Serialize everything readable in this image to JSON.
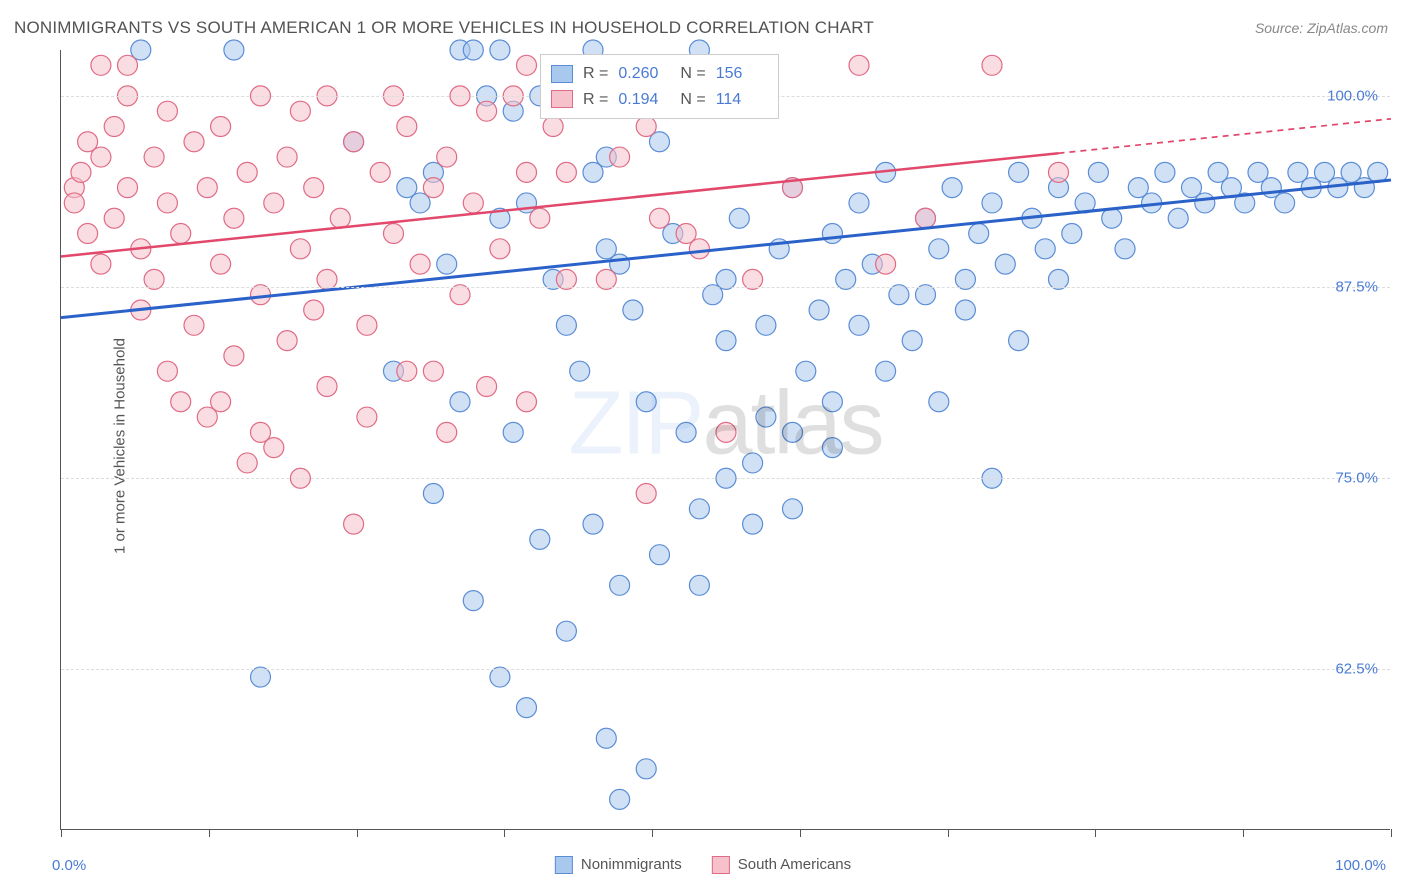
{
  "title": "NONIMMIGRANTS VS SOUTH AMERICAN 1 OR MORE VEHICLES IN HOUSEHOLD CORRELATION CHART",
  "source": "Source: ZipAtlas.com",
  "ylabel": "1 or more Vehicles in Household",
  "watermark_zip": "ZIP",
  "watermark_atlas": "atlas",
  "xaxis": {
    "min_label": "0.0%",
    "max_label": "100.0%",
    "tick_count": 9
  },
  "ytick_labels": [
    "100.0%",
    "87.5%",
    "75.0%",
    "62.5%"
  ],
  "legend_bottom": [
    {
      "label": "Nonimmigrants",
      "fill": "#a9c8ed",
      "stroke": "#5b8dd6"
    },
    {
      "label": "South Americans",
      "fill": "#f6c1cb",
      "stroke": "#e06b85"
    }
  ],
  "stats": [
    {
      "fill": "#a9c8ed",
      "stroke": "#5b8dd6",
      "r": "0.260",
      "n": "156"
    },
    {
      "fill": "#f6c1cb",
      "stroke": "#e06b85",
      "r": "0.194",
      "n": "114"
    }
  ],
  "chart": {
    "type": "scatter",
    "xlim": [
      0,
      100
    ],
    "ylim": [
      52,
      103
    ],
    "grid_y": [
      100,
      87.5,
      75,
      62.5
    ],
    "marker_radius": 10,
    "marker_opacity": 0.55,
    "background_color": "#ffffff",
    "grid_color": "#dcdcdc",
    "series": [
      {
        "name": "Nonimmigrants",
        "color_fill": "#a9c8ed",
        "color_stroke": "#5b8dd6",
        "trend": {
          "y_at_x0": 85.5,
          "y_at_x100": 94.5,
          "solid_to_x": 100,
          "stroke": "#2b62c9",
          "width": 3
        },
        "points": [
          [
            6,
            103
          ],
          [
            13,
            103
          ],
          [
            30,
            103
          ],
          [
            31,
            103
          ],
          [
            33,
            103
          ],
          [
            40,
            103
          ],
          [
            48,
            103
          ],
          [
            46,
            102
          ],
          [
            50,
            101
          ],
          [
            44,
            100
          ],
          [
            41,
            96
          ],
          [
            22,
            97
          ],
          [
            26,
            94
          ],
          [
            27,
            93
          ],
          [
            28,
            95
          ],
          [
            29,
            89
          ],
          [
            32,
            100
          ],
          [
            33,
            92
          ],
          [
            34,
            99
          ],
          [
            35,
            93
          ],
          [
            36,
            100
          ],
          [
            37,
            88
          ],
          [
            38,
            85
          ],
          [
            39,
            82
          ],
          [
            40,
            95
          ],
          [
            41,
            90
          ],
          [
            42,
            89
          ],
          [
            43,
            86
          ],
          [
            44,
            80
          ],
          [
            45,
            97
          ],
          [
            46,
            91
          ],
          [
            47,
            78
          ],
          [
            48,
            73
          ],
          [
            49,
            87
          ],
          [
            50,
            88
          ],
          [
            51,
            92
          ],
          [
            52,
            76
          ],
          [
            53,
            85
          ],
          [
            54,
            90
          ],
          [
            55,
            94
          ],
          [
            56,
            82
          ],
          [
            57,
            86
          ],
          [
            58,
            91
          ],
          [
            59,
            88
          ],
          [
            60,
            93
          ],
          [
            61,
            89
          ],
          [
            62,
            95
          ],
          [
            63,
            87
          ],
          [
            64,
            84
          ],
          [
            65,
            92
          ],
          [
            66,
            90
          ],
          [
            67,
            94
          ],
          [
            68,
            88
          ],
          [
            69,
            91
          ],
          [
            70,
            93
          ],
          [
            71,
            89
          ],
          [
            72,
            95
          ],
          [
            73,
            92
          ],
          [
            74,
            90
          ],
          [
            75,
            94
          ],
          [
            76,
            91
          ],
          [
            77,
            93
          ],
          [
            78,
            95
          ],
          [
            79,
            92
          ],
          [
            80,
            90
          ],
          [
            81,
            94
          ],
          [
            82,
            93
          ],
          [
            83,
            95
          ],
          [
            84,
            92
          ],
          [
            85,
            94
          ],
          [
            86,
            93
          ],
          [
            87,
            95
          ],
          [
            88,
            94
          ],
          [
            89,
            93
          ],
          [
            90,
            95
          ],
          [
            91,
            94
          ],
          [
            92,
            93
          ],
          [
            93,
            95
          ],
          [
            94,
            94
          ],
          [
            95,
            95
          ],
          [
            96,
            94
          ],
          [
            97,
            95
          ],
          [
            98,
            94
          ],
          [
            99,
            95
          ],
          [
            40,
            72
          ],
          [
            42,
            68
          ],
          [
            45,
            70
          ],
          [
            38,
            65
          ],
          [
            35,
            60
          ],
          [
            33,
            62
          ],
          [
            50,
            75
          ],
          [
            55,
            78
          ],
          [
            58,
            80
          ],
          [
            48,
            68
          ],
          [
            52,
            72
          ],
          [
            15,
            62
          ],
          [
            41,
            58
          ],
          [
            44,
            56
          ],
          [
            42,
            54
          ],
          [
            36,
            71
          ],
          [
            31,
            67
          ],
          [
            34,
            78
          ],
          [
            30,
            80
          ],
          [
            28,
            74
          ],
          [
            25,
            82
          ],
          [
            60,
            85
          ],
          [
            65,
            87
          ],
          [
            62,
            82
          ],
          [
            68,
            86
          ],
          [
            72,
            84
          ],
          [
            75,
            88
          ],
          [
            70,
            75
          ],
          [
            66,
            80
          ],
          [
            55,
            73
          ],
          [
            58,
            77
          ],
          [
            50,
            84
          ],
          [
            53,
            79
          ]
        ]
      },
      {
        "name": "South Americans",
        "color_fill": "#f6c1cb",
        "color_stroke": "#e06b85",
        "trend": {
          "y_at_x0": 89.5,
          "y_at_x100": 98.5,
          "solid_to_x": 75,
          "stroke": "#e2486b",
          "width": 2.5
        },
        "points": [
          [
            1,
            94
          ],
          [
            1,
            93
          ],
          [
            1.5,
            95
          ],
          [
            2,
            97
          ],
          [
            2,
            91
          ],
          [
            3,
            96
          ],
          [
            3,
            89
          ],
          [
            4,
            98
          ],
          [
            4,
            92
          ],
          [
            5,
            94
          ],
          [
            5,
            100
          ],
          [
            6,
            90
          ],
          [
            7,
            96
          ],
          [
            7,
            88
          ],
          [
            8,
            93
          ],
          [
            8,
            99
          ],
          [
            9,
            91
          ],
          [
            10,
            97
          ],
          [
            10,
            85
          ],
          [
            11,
            94
          ],
          [
            12,
            98
          ],
          [
            12,
            89
          ],
          [
            13,
            92
          ],
          [
            14,
            95
          ],
          [
            15,
            100
          ],
          [
            15,
            87
          ],
          [
            16,
            93
          ],
          [
            17,
            96
          ],
          [
            18,
            90
          ],
          [
            18,
            99
          ],
          [
            19,
            94
          ],
          [
            20,
            88
          ],
          [
            20,
            100
          ],
          [
            21,
            92
          ],
          [
            22,
            97
          ],
          [
            23,
            85
          ],
          [
            24,
            95
          ],
          [
            25,
            91
          ],
          [
            25,
            100
          ],
          [
            26,
            98
          ],
          [
            27,
            89
          ],
          [
            28,
            94
          ],
          [
            28,
            82
          ],
          [
            29,
            96
          ],
          [
            30,
            100
          ],
          [
            30,
            87
          ],
          [
            31,
            93
          ],
          [
            32,
            99
          ],
          [
            33,
            90
          ],
          [
            34,
            100
          ],
          [
            35,
            95
          ],
          [
            35,
            80
          ],
          [
            36,
            92
          ],
          [
            37,
            98
          ],
          [
            38,
            88
          ],
          [
            40,
            102
          ],
          [
            42,
            96
          ],
          [
            44,
            74
          ],
          [
            45,
            92
          ],
          [
            48,
            90
          ],
          [
            50,
            78
          ],
          [
            50,
            102
          ],
          [
            52,
            88
          ],
          [
            55,
            94
          ],
          [
            60,
            102
          ],
          [
            62,
            89
          ],
          [
            65,
            92
          ],
          [
            70,
            102
          ],
          [
            75,
            95
          ],
          [
            12,
            80
          ],
          [
            15,
            78
          ],
          [
            18,
            75
          ],
          [
            22,
            72
          ],
          [
            8,
            82
          ],
          [
            11,
            79
          ],
          [
            14,
            76
          ],
          [
            17,
            84
          ],
          [
            20,
            81
          ],
          [
            6,
            86
          ],
          [
            9,
            80
          ],
          [
            13,
            83
          ],
          [
            16,
            77
          ],
          [
            19,
            86
          ],
          [
            23,
            79
          ],
          [
            26,
            82
          ],
          [
            29,
            78
          ],
          [
            32,
            81
          ],
          [
            35,
            102
          ],
          [
            38,
            95
          ],
          [
            41,
            88
          ],
          [
            44,
            98
          ],
          [
            47,
            91
          ],
          [
            3,
            102
          ],
          [
            5,
            102
          ]
        ]
      }
    ]
  }
}
